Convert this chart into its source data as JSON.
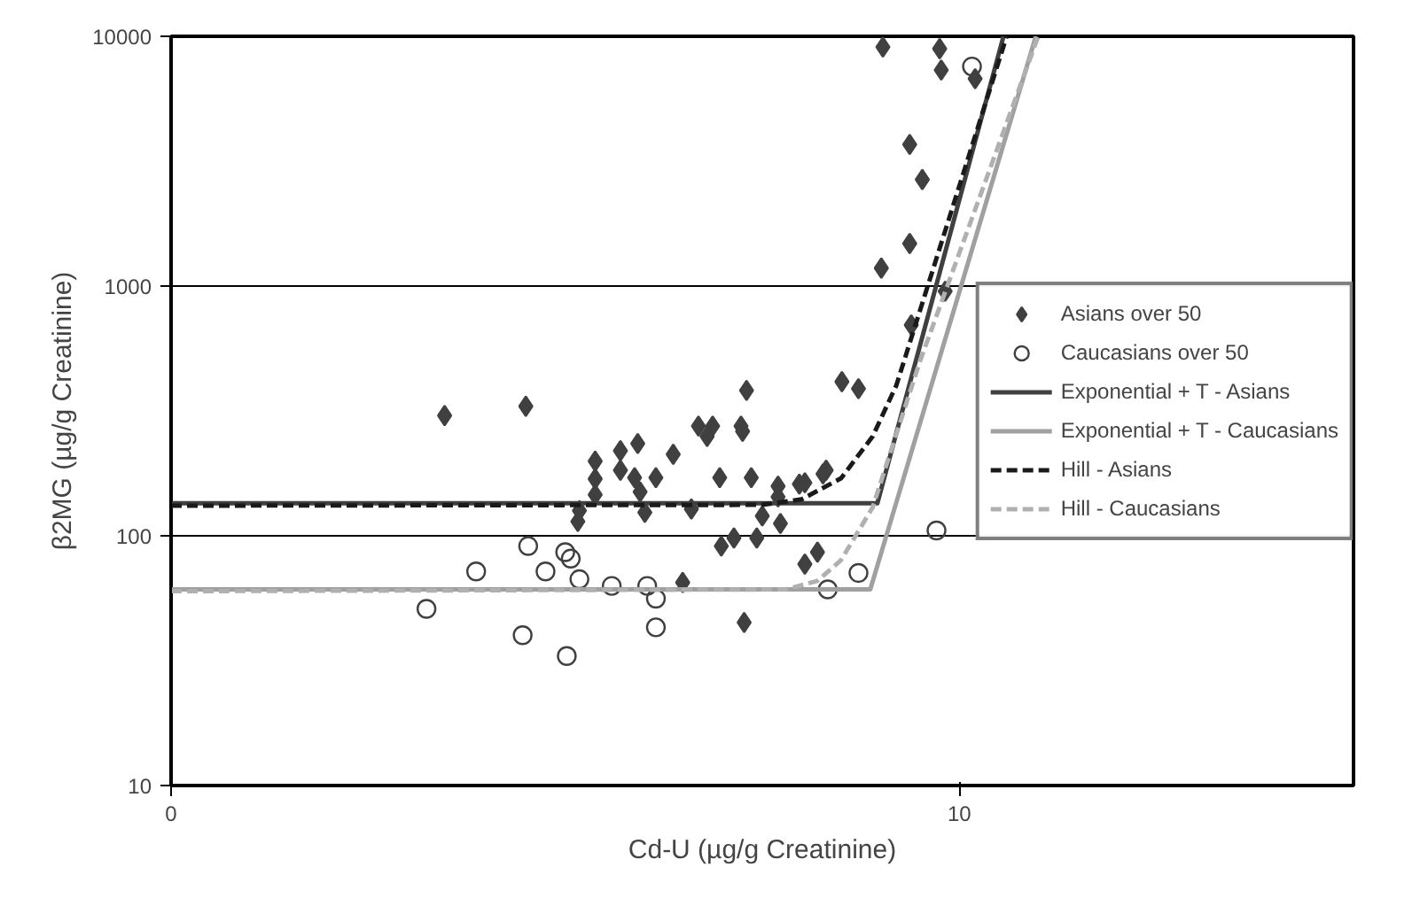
{
  "chart_data": {
    "type": "scatter",
    "xlabel": "Cd-U (µg/g Creatinine)",
    "ylabel": "β2MG (µg/g Creatinine)",
    "xlim": [
      0,
      15
    ],
    "xticks": [
      0,
      10
    ],
    "ylim": [
      10,
      10000
    ],
    "yticks": [
      10,
      100,
      1000,
      10000
    ],
    "log": "y",
    "grid": "y",
    "legend": "right",
    "series": [
      {
        "name": "Asians over 50",
        "marker": "diamond",
        "color": "#404040",
        "x": [
          3.47,
          4.5,
          5.38,
          5.38,
          5.38,
          5.18,
          5.16,
          5.7,
          5.92,
          5.7,
          5.88,
          5.95,
          6.15,
          6.37,
          6.01,
          6.69,
          6.87,
          6.8,
          7.23,
          7.25,
          7.3,
          6.6,
          6.96,
          7.36,
          7.7,
          7.7,
          7.5,
          7.73,
          7.14,
          7.43,
          6.98,
          6.49,
          7.27,
          7.97,
          8.04,
          8.31,
          8.27,
          8.51,
          8.72,
          8.2,
          8.04,
          9.03,
          9.75,
          9.77,
          10.2,
          9.37,
          9.53,
          9.37,
          9.01,
          9.82,
          9.39
        ],
        "values": [
          303,
          330,
          199,
          169,
          146,
          126,
          114,
          219,
          234,
          183,
          171,
          150,
          171,
          212,
          124,
          275,
          275,
          250,
          275,
          262,
          382,
          128,
          171,
          171,
          158,
          143,
          120,
          112,
          98,
          98,
          91,
          65,
          45,
          161,
          163,
          183,
          177,
          414,
          388,
          86,
          77,
          9060,
          8920,
          7330,
          6760,
          3690,
          2670,
          1480,
          1180,
          953,
          698
        ]
      },
      {
        "name": "Caucasians over 50",
        "marker": "circle",
        "color": "#404040",
        "x": [
          4.53,
          5.0,
          5.07,
          3.87,
          4.75,
          5.18,
          5.59,
          6.04,
          6.15,
          3.24,
          4.46,
          5.02,
          6.15,
          8.33,
          8.72,
          9.71,
          10.16
        ],
        "values": [
          91,
          86,
          81,
          72,
          72,
          67,
          63,
          63,
          56,
          51,
          40,
          33,
          43,
          61,
          71,
          105,
          7570
        ]
      },
      {
        "name": "Exponential + T - Asians",
        "type": "line",
        "line_style": "solid",
        "color": "#404040",
        "x": [
          0,
          8.96,
          10.56
        ],
        "values": [
          135,
          135,
          10000
        ]
      },
      {
        "name": "Exponential + T - Caucasians",
        "type": "line",
        "line_style": "solid",
        "color": "#a0a0a0",
        "x": [
          0,
          8.87,
          10.97
        ],
        "values": [
          61,
          61,
          10000
        ]
      },
      {
        "name": "Hill - Asians",
        "type": "line",
        "line_style": "dashed",
        "color": "#1a1a1a",
        "x": [
          0,
          7.5,
          8.0,
          8.5,
          8.9,
          9.2,
          10.6
        ],
        "values": [
          132,
          133,
          140,
          170,
          250,
          400,
          10000
        ]
      },
      {
        "name": "Hill - Caucasians",
        "type": "line",
        "line_style": "dashed",
        "color": "#b0b0b0",
        "x": [
          0,
          7.8,
          8.2,
          8.5,
          8.9,
          9.5,
          11.0
        ],
        "values": [
          60,
          61,
          66,
          80,
          130,
          500,
          10000
        ]
      }
    ]
  }
}
